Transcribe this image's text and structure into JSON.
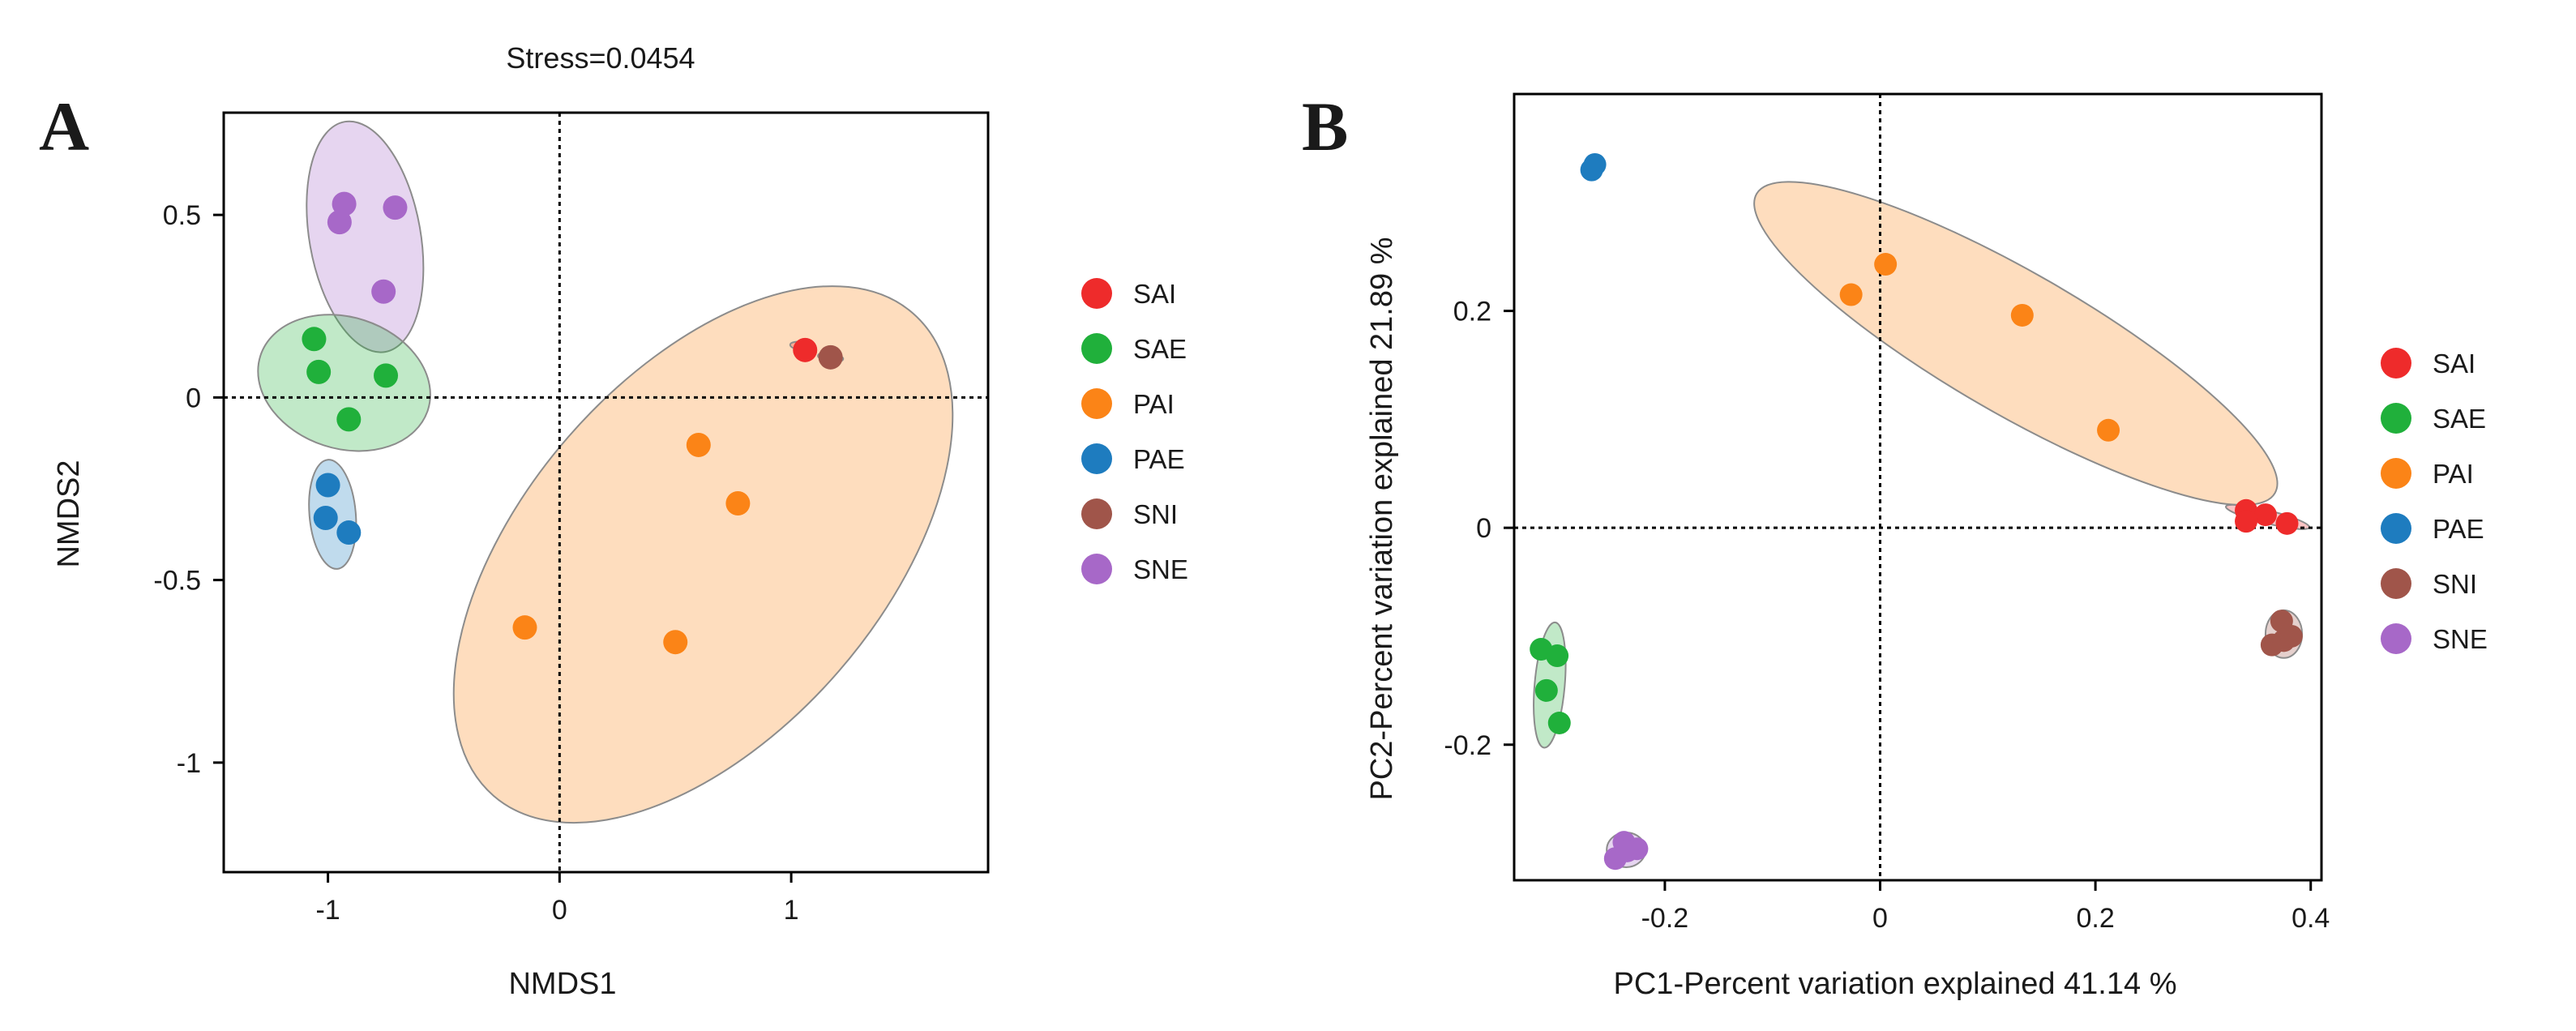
{
  "colors": {
    "SAI": "#ee2b2b",
    "SAE": "#20b03b",
    "PAI": "#fb8417",
    "PAE": "#1e7cbf",
    "SNI": "#a0554a",
    "SNE": "#a768c8"
  },
  "chart_data": [
    {
      "type": "scatter",
      "panel": "A",
      "title": "Stress=0.0454",
      "xlabel": "NMDS1",
      "ylabel": "NMDS2",
      "xlim": [
        -1.45,
        1.85
      ],
      "ylim": [
        -1.3,
        0.78
      ],
      "xticks": [
        -1,
        0,
        1
      ],
      "xtick_labels": [
        "-1",
        "0",
        "1"
      ],
      "yticks": [
        0.5,
        0,
        -0.5,
        -1
      ],
      "ytick_labels": [
        "0.5",
        "0",
        "-0.5",
        "-1"
      ],
      "reference_lines": {
        "x": 0,
        "y": 0
      },
      "legend": [
        "SAI",
        "SAE",
        "PAI",
        "PAE",
        "SNI",
        "SNE"
      ],
      "series": [
        {
          "name": "SAI",
          "points": [
            [
              1.06,
              0.13
            ]
          ]
        },
        {
          "name": "SAE",
          "points": [
            [
              -1.06,
              0.16
            ],
            [
              -1.04,
              0.07
            ],
            [
              -0.75,
              0.06
            ],
            [
              -0.91,
              -0.06
            ]
          ]
        },
        {
          "name": "PAI",
          "points": [
            [
              0.6,
              -0.13
            ],
            [
              0.77,
              -0.29
            ],
            [
              -0.15,
              -0.63
            ],
            [
              0.5,
              -0.67
            ]
          ]
        },
        {
          "name": "PAE",
          "points": [
            [
              -1.0,
              -0.24
            ],
            [
              -1.01,
              -0.33
            ],
            [
              -0.91,
              -0.37
            ]
          ]
        },
        {
          "name": "SNI",
          "points": [
            [
              1.17,
              0.11
            ]
          ]
        },
        {
          "name": "SNE",
          "points": [
            [
              -0.93,
              0.53
            ],
            [
              -0.71,
              0.52
            ],
            [
              -0.95,
              0.48
            ],
            [
              -0.76,
              0.29
            ]
          ]
        }
      ],
      "ellipses": [
        {
          "group": "SNE",
          "cx": -0.84,
          "cy": 0.44,
          "rx": 0.24,
          "ry": 0.32,
          "angle": 10
        },
        {
          "group": "SAE",
          "cx": -0.93,
          "cy": 0.04,
          "rx": 0.38,
          "ry": 0.18,
          "angle": -18
        },
        {
          "group": "PAE",
          "cx": -0.98,
          "cy": -0.32,
          "rx": 0.1,
          "ry": 0.15,
          "angle": 5
        },
        {
          "group": "PAI",
          "cx": 0.62,
          "cy": -0.43,
          "rx": 1.38,
          "ry": 0.49,
          "angle": 49
        },
        {
          "group": "SAI",
          "cx": 1.05,
          "cy": 0.14,
          "rx": 0.055,
          "ry": 0.012,
          "angle": -8
        },
        {
          "group": "SNI",
          "cx": 1.17,
          "cy": 0.11,
          "rx": 0.055,
          "ry": 0.012,
          "angle": -8
        }
      ]
    },
    {
      "type": "scatter",
      "panel": "B",
      "title": "",
      "xlabel": "PC1-Percent variation explained 41.14 %",
      "ylabel": "PC2-Percent variation explained 21.89 %",
      "xlim": [
        -0.34,
        0.41
      ],
      "ylim": [
        -0.325,
        0.4
      ],
      "xticks": [
        -0.2,
        0,
        0.2,
        0.4
      ],
      "xtick_labels": [
        "-0.2",
        "0",
        "0.2",
        "0.4"
      ],
      "yticks": [
        0.2,
        0,
        -0.2
      ],
      "ytick_labels": [
        "0.2",
        "0",
        "-0.2"
      ],
      "reference_lines": {
        "x": 0,
        "y": 0
      },
      "legend": [
        "SAI",
        "SAE",
        "PAI",
        "PAE",
        "SNI",
        "SNE"
      ],
      "series": [
        {
          "name": "SAI",
          "points": [
            [
              0.34,
              0.016
            ],
            [
              0.358,
              0.012
            ],
            [
              0.378,
              0.004
            ],
            [
              0.34,
              0.006
            ]
          ]
        },
        {
          "name": "SAE",
          "points": [
            [
              -0.315,
              -0.112
            ],
            [
              -0.3,
              -0.118
            ],
            [
              -0.31,
              -0.15
            ],
            [
              -0.298,
              -0.18
            ]
          ]
        },
        {
          "name": "PAI",
          "points": [
            [
              -0.027,
              0.215
            ],
            [
              0.005,
              0.243
            ],
            [
              0.132,
              0.196
            ],
            [
              0.212,
              0.09
            ]
          ]
        },
        {
          "name": "PAE",
          "points": [
            [
              -0.265,
              0.335
            ],
            [
              -0.268,
              0.33
            ]
          ]
        },
        {
          "name": "SNI",
          "points": [
            [
              0.373,
              -0.086
            ],
            [
              0.364,
              -0.108
            ],
            [
              0.375,
              -0.104
            ],
            [
              0.382,
              -0.1
            ]
          ]
        },
        {
          "name": "SNE",
          "points": [
            [
              -0.238,
              -0.29
            ],
            [
              -0.226,
              -0.296
            ],
            [
              -0.246,
              -0.305
            ],
            [
              -0.235,
              -0.298
            ]
          ]
        }
      ],
      "ellipses": [
        {
          "group": "PAI",
          "cx": 0.126,
          "cy": 0.17,
          "rx": 0.278,
          "ry": 0.065,
          "angle": -30
        },
        {
          "group": "SAI",
          "cx": 0.36,
          "cy": 0.01,
          "rx": 0.04,
          "ry": 0.006,
          "angle": -14
        },
        {
          "group": "SNI",
          "cx": 0.375,
          "cy": -0.098,
          "rx": 0.017,
          "ry": 0.022,
          "angle": 0
        },
        {
          "group": "SAE",
          "cx": -0.307,
          "cy": -0.145,
          "rx": 0.014,
          "ry": 0.058,
          "angle": -5
        },
        {
          "group": "SNE",
          "cx": -0.236,
          "cy": -0.297,
          "rx": 0.018,
          "ry": 0.016,
          "angle": 0
        }
      ]
    }
  ]
}
